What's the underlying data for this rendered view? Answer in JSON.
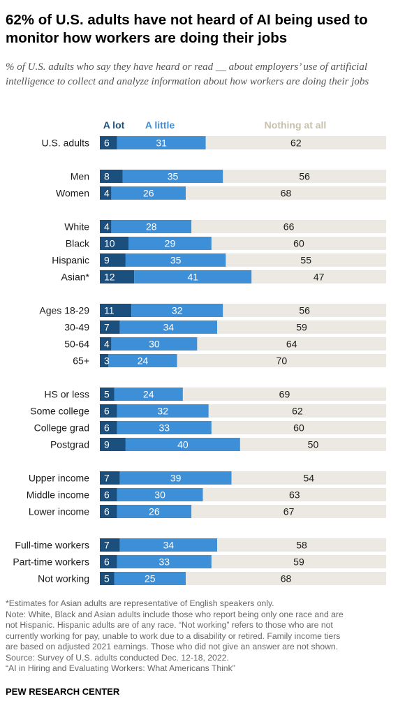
{
  "title": "62% of U.S. adults have not heard of AI being used to monitor how workers are doing their jobs",
  "subtitle": "% of U.S. adults who say they have heard or read __ about employers’ use of artificial intelligence to collect and analyze information about how workers are doing their jobs",
  "colors": {
    "a_lot": "#1b4f7d",
    "a_little": "#3d8fd8",
    "nothing": "#ece9e2",
    "legend_nothing_text": "#c9c0ab",
    "text_light": "#ffffff",
    "text_dark": "#1a1a1a"
  },
  "notes": [
    "*Estimates for Asian adults are representative of English speakers only.",
    "Note: White, Black and Asian adults include those who report being only one race and are",
    "not Hispanic. Hispanic adults are of any race. “Not working” refers to those who are not",
    "currently working for pay, unable to work due to a disability or retired. Family income tiers",
    "are based on adjusted 2021 earnings. Those who did not give an answer are not shown.",
    "Source: Survey of U.S. adults conducted Dec. 12-18, 2022.",
    "“AI in Hiring and Evaluating Workers: What Americans Think”"
  ],
  "source_brand": "PEW RESEARCH CENTER",
  "chart_data": {
    "type": "bar",
    "orientation": "horizontal",
    "stacked": true,
    "legend_position": "top",
    "xlim": [
      0,
      100
    ],
    "series": [
      {
        "name": "A lot",
        "color": "#1b4f7d"
      },
      {
        "name": "A little",
        "color": "#3d8fd8"
      },
      {
        "name": "Nothing at all",
        "color": "#ece9e2"
      }
    ],
    "groups": [
      {
        "rows": [
          {
            "label": "U.S. adults",
            "values": [
              6,
              31,
              62
            ]
          }
        ]
      },
      {
        "rows": [
          {
            "label": "Men",
            "values": [
              8,
              35,
              56
            ]
          },
          {
            "label": "Women",
            "values": [
              4,
              26,
              68
            ]
          }
        ]
      },
      {
        "rows": [
          {
            "label": "White",
            "values": [
              4,
              28,
              66
            ]
          },
          {
            "label": "Black",
            "values": [
              10,
              29,
              60
            ]
          },
          {
            "label": "Hispanic",
            "values": [
              9,
              35,
              55
            ]
          },
          {
            "label": "Asian*",
            "values": [
              12,
              41,
              47
            ]
          }
        ]
      },
      {
        "rows": [
          {
            "label": "Ages 18-29",
            "values": [
              11,
              32,
              56
            ]
          },
          {
            "label": "30-49",
            "values": [
              7,
              34,
              59
            ]
          },
          {
            "label": "50-64",
            "values": [
              4,
              30,
              64
            ]
          },
          {
            "label": "65+",
            "values": [
              3,
              24,
              70
            ]
          }
        ]
      },
      {
        "rows": [
          {
            "label": "HS or less",
            "values": [
              5,
              24,
              69
            ]
          },
          {
            "label": "Some college",
            "values": [
              6,
              32,
              62
            ]
          },
          {
            "label": "College grad",
            "values": [
              6,
              33,
              60
            ]
          },
          {
            "label": "Postgrad",
            "values": [
              9,
              40,
              50
            ]
          }
        ]
      },
      {
        "rows": [
          {
            "label": "Upper income",
            "values": [
              7,
              39,
              54
            ]
          },
          {
            "label": "Middle income",
            "values": [
              6,
              30,
              63
            ]
          },
          {
            "label": "Lower income",
            "values": [
              6,
              26,
              67
            ]
          }
        ]
      },
      {
        "rows": [
          {
            "label": "Full-time workers",
            "values": [
              7,
              34,
              58
            ]
          },
          {
            "label": "Part-time workers",
            "values": [
              6,
              33,
              59
            ]
          },
          {
            "label": "Not working",
            "values": [
              5,
              25,
              68
            ]
          }
        ]
      }
    ]
  }
}
